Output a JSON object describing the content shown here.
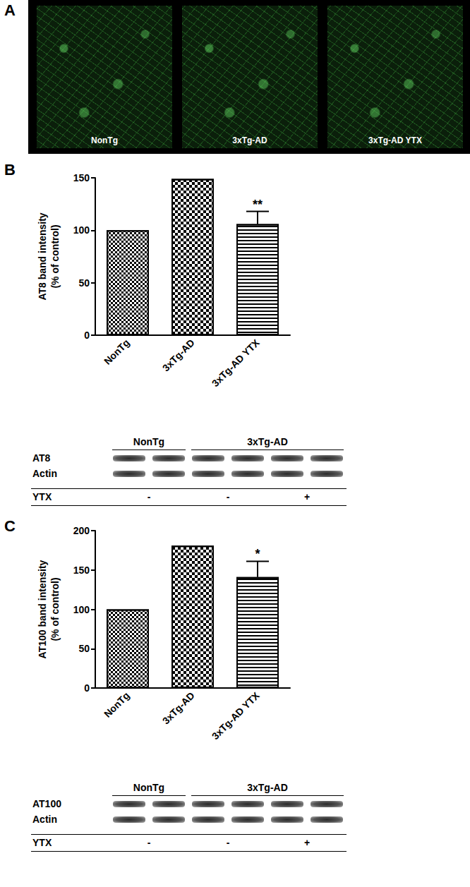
{
  "panel_a": {
    "label": "A",
    "images": [
      "NonTg",
      "3xTg-AD",
      "3xTg-AD YTX"
    ]
  },
  "chart_data": [
    {
      "panel": "B",
      "type": "bar",
      "y_label": "AT8 band intensity\n(% of control)",
      "categories": [
        "NonTg",
        "3xTg-AD",
        "3xTg-AD YTX"
      ],
      "values": [
        100,
        149,
        106
      ],
      "errors": [
        null,
        null,
        12
      ],
      "significance": [
        null,
        null,
        "**"
      ],
      "color": "#000000",
      "ylim": [
        0,
        150
      ],
      "yticks": [
        0,
        50,
        100,
        150
      ],
      "grid": false,
      "blot": {
        "groups": [
          {
            "label": "NonTg",
            "lanes": 2
          },
          {
            "label": "3xTg-AD",
            "lanes": 4
          }
        ],
        "rows": [
          "AT8",
          "Actin"
        ],
        "treatment_label": "YTX",
        "treatment": [
          {
            "sign": "-",
            "lanes": 2
          },
          {
            "sign": "-",
            "lanes": 2
          },
          {
            "sign": "+",
            "lanes": 2
          }
        ]
      }
    },
    {
      "panel": "C",
      "type": "bar",
      "y_label": "AT100 band intensity\n(% of control)",
      "categories": [
        "NonTg",
        "3xTg-AD",
        "3xTg-AD YTX"
      ],
      "values": [
        100,
        181,
        141
      ],
      "errors": [
        null,
        null,
        20
      ],
      "significance": [
        null,
        null,
        "*"
      ],
      "color": "#000000",
      "ylim": [
        0,
        200
      ],
      "yticks": [
        0,
        50,
        100,
        150,
        200
      ],
      "grid": false,
      "blot": {
        "groups": [
          {
            "label": "NonTg",
            "lanes": 2
          },
          {
            "label": "3xTg-AD",
            "lanes": 4
          }
        ],
        "rows": [
          "AT100",
          "Actin"
        ],
        "treatment_label": "YTX",
        "treatment": [
          {
            "sign": "-",
            "lanes": 2
          },
          {
            "sign": "-",
            "lanes": 2
          },
          {
            "sign": "+",
            "lanes": 2
          }
        ]
      }
    }
  ]
}
